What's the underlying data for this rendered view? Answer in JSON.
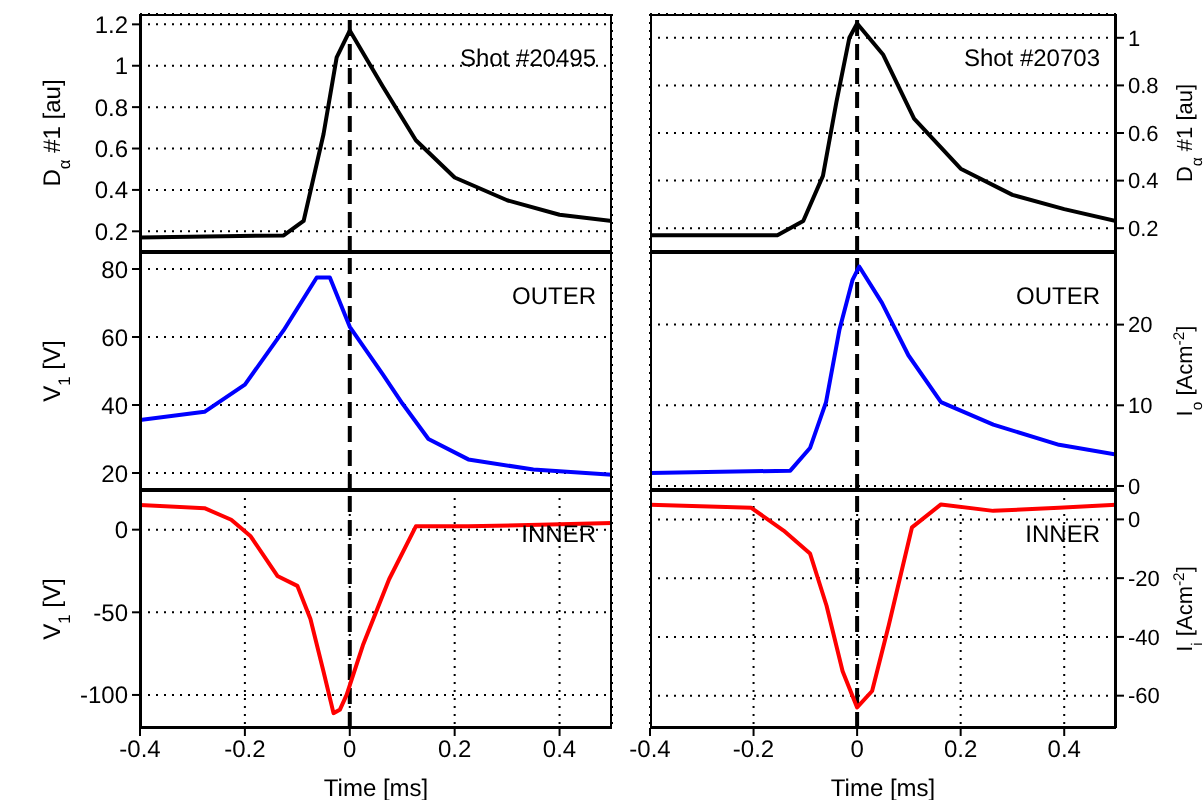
{
  "chart_data": [
    {
      "type": "line",
      "x": [
        -0.4,
        -0.126,
        -0.088,
        -0.05,
        -0.025,
        0,
        0.063,
        0.126,
        0.2,
        0.3,
        0.4,
        0.5
      ],
      "series": [
        {
          "color": "#000000",
          "values": [
            0.17,
            0.18,
            0.25,
            0.67,
            1.04,
            1.17,
            0.9,
            0.64,
            0.46,
            0.35,
            0.28,
            0.25
          ]
        }
      ],
      "xlim": [
        -0.4,
        0.5
      ],
      "xticks": [
        -0.4,
        -0.2,
        0,
        0.2,
        0.4
      ],
      "ylim": [
        0.1,
        1.25
      ],
      "yticks": [
        0.2,
        0.4,
        0.6,
        0.8,
        1,
        1.2
      ],
      "ylabel": "D$_{α}$ #1 [au]",
      "annotations": [
        "Shot #20495"
      ],
      "ref_lines": [
        {
          "axis": "x",
          "value": 0,
          "color": "#000000",
          "line_style": "dashed"
        }
      ],
      "grid": true,
      "tick_labels": "y"
    },
    {
      "type": "line",
      "x": [
        -0.4,
        -0.154,
        -0.104,
        -0.066,
        -0.04,
        -0.015,
        0,
        0.05,
        0.11,
        0.2,
        0.3,
        0.4,
        0.5
      ],
      "series": [
        {
          "color": "#000000",
          "axis": "y2",
          "values": [
            0.17,
            0.17,
            0.23,
            0.42,
            0.73,
            1.0,
            1.06,
            0.93,
            0.66,
            0.45,
            0.34,
            0.28,
            0.23
          ]
        }
      ],
      "xlim": [
        -0.4,
        0.5
      ],
      "xticks": [
        -0.4,
        -0.2,
        0,
        0.2,
        0.4
      ],
      "y2lim": [
        0.1,
        1.1
      ],
      "y2ticks": [
        0.2,
        0.4,
        0.6,
        0.8,
        1
      ],
      "y2label": "D$_{α}$ #1 [au]",
      "annotations": [
        "Shot #20703"
      ],
      "ref_lines": [
        {
          "axis": "x",
          "value": 0,
          "color": "#000000",
          "line_style": "dashed"
        }
      ],
      "grid": true,
      "tick_labels": "y"
    },
    {
      "type": "line",
      "x": [
        -0.4,
        -0.277,
        -0.2,
        -0.126,
        -0.063,
        -0.038,
        0,
        0.063,
        0.1,
        0.15,
        0.226,
        0.35,
        0.5
      ],
      "series": [
        {
          "color": "#0000ff",
          "values": [
            35.6,
            38,
            46,
            62,
            77.5,
            77.5,
            63,
            49,
            40.5,
            30,
            24,
            21,
            19.5
          ]
        }
      ],
      "xlim": [
        -0.4,
        0.5
      ],
      "xticks": [
        -0.4,
        -0.2,
        0,
        0.2,
        0.4
      ],
      "ylim": [
        15,
        85
      ],
      "yticks": [
        20,
        40,
        60,
        80
      ],
      "ylabel": "V$_{1}$ [V]",
      "annotations": [
        "OUTER"
      ],
      "ref_lines": [
        {
          "axis": "x",
          "value": 0,
          "color": "#000000",
          "line_style": "dashed"
        }
      ],
      "grid": true,
      "tick_labels": "y"
    },
    {
      "type": "line",
      "x": [
        -0.4,
        -0.129,
        -0.091,
        -0.06,
        -0.034,
        -0.009,
        0.004,
        0.048,
        0.099,
        0.162,
        0.263,
        0.39,
        0.5
      ],
      "series": [
        {
          "color": "#0000ff",
          "axis": "y2",
          "values": [
            1.6,
            1.9,
            4.7,
            10.4,
            19.4,
            25.5,
            27.2,
            22.7,
            16.2,
            10.4,
            7.6,
            5.1,
            3.9
          ]
        }
      ],
      "xlim": [
        -0.4,
        0.5
      ],
      "xticks": [
        -0.4,
        -0.2,
        0,
        0.2,
        0.4
      ],
      "y2lim": [
        -0.5,
        29
      ],
      "y2ticks": [
        0,
        10,
        20
      ],
      "y2label": "I$_{o}$ [Acm$^{-2}$]",
      "annotations": [
        "OUTER"
      ],
      "ref_lines": [
        {
          "axis": "x",
          "value": 0,
          "color": "#000000",
          "line_style": "dashed"
        }
      ],
      "grid": true,
      "tick_labels": "y"
    },
    {
      "type": "line",
      "x": [
        -0.4,
        -0.277,
        -0.226,
        -0.189,
        -0.138,
        -0.1,
        -0.075,
        -0.05,
        -0.031,
        -0.019,
        -0.006,
        0.025,
        0.075,
        0.126,
        0.226,
        0.5
      ],
      "series": [
        {
          "color": "#ff0000",
          "values": [
            15,
            13,
            6,
            -4,
            -28,
            -34,
            -54,
            -86,
            -111,
            -109,
            -100,
            -70,
            -30,
            2,
            2,
            4
          ]
        }
      ],
      "xlim": [
        -0.4,
        0.5
      ],
      "xticks": [
        -0.4,
        -0.2,
        0,
        0.2,
        0.4
      ],
      "ylim": [
        -120,
        24
      ],
      "yticks": [
        -100,
        -50,
        0
      ],
      "xlabel": "Time [ms]",
      "ylabel": "V$_{1}$ [V]",
      "annotations": [
        "INNER"
      ],
      "ref_lines": [
        {
          "axis": "x",
          "value": 0,
          "color": "#000000",
          "line_style": "dashed"
        }
      ],
      "grid": true
    },
    {
      "type": "line",
      "x": [
        -0.4,
        -0.205,
        -0.142,
        -0.091,
        -0.059,
        -0.028,
        0,
        0.029,
        0.061,
        0.106,
        0.162,
        0.263,
        0.39,
        0.5
      ],
      "series": [
        {
          "color": "#ff0000",
          "axis": "y2",
          "values": [
            5,
            4,
            -3.8,
            -11.6,
            -29.4,
            -51.7,
            -64,
            -58.4,
            -36.1,
            -2.7,
            5.1,
            2.9,
            4,
            5
          ]
        }
      ],
      "xlim": [
        -0.4,
        0.5
      ],
      "xticks": [
        -0.4,
        -0.2,
        0,
        0.2,
        0.4
      ],
      "y2lim": [
        -71,
        10
      ],
      "y2ticks": [
        -60,
        -40,
        -20,
        0
      ],
      "xlabel": "Time [ms]",
      "y2label": "I$_{i}$ [Acm$^{-2}$]",
      "annotations": [
        "INNER"
      ],
      "ref_lines": [
        {
          "axis": "x",
          "value": 0,
          "color": "#000000",
          "line_style": "dashed"
        }
      ],
      "grid": true
    }
  ]
}
